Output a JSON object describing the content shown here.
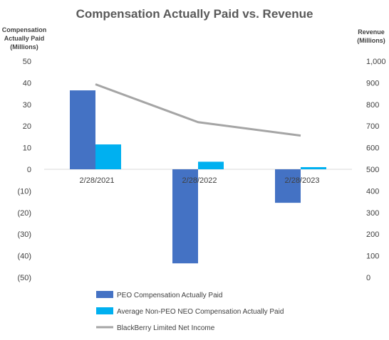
{
  "chart_data": {
    "type": "bar",
    "title": "Compensation Actually Paid vs. Revenue",
    "y_left_label_lines": [
      "Compensation",
      "Actually Paid",
      "(Millions)"
    ],
    "y_right_label_lines": [
      "Revenue",
      "(Millions)"
    ],
    "categories": [
      "2/28/2021",
      "2/28/2022",
      "2/28/2023"
    ],
    "y_left_ticks": [
      "50",
      "40",
      "30",
      "20",
      "10",
      "0",
      "(10)",
      "(20)",
      "(30)",
      "(40)",
      "(50)"
    ],
    "y_right_ticks": [
      "1,000",
      "900",
      "800",
      "700",
      "600",
      "500",
      "400",
      "300",
      "200",
      "100",
      "0"
    ],
    "ylim_left": [
      -50,
      50
    ],
    "ylim_right": [
      0,
      1000
    ],
    "series": [
      {
        "name": "PEO Compensation Actually Paid",
        "type": "bar",
        "axis": "left",
        "color": "#4472C4",
        "values": [
          36.5,
          -43.5,
          -15.5
        ]
      },
      {
        "name": "Average Non-PEO NEO Compensation Actually Paid",
        "type": "bar",
        "axis": "left",
        "color": "#00B0F0",
        "values": [
          11.5,
          3.5,
          1.0
        ]
      },
      {
        "name": "BlackBerry Limited Net Income",
        "type": "line",
        "axis": "right",
        "color": "#A5A5A5",
        "values": [
          893,
          718,
          656
        ]
      }
    ],
    "legend_position": "bottom",
    "grid": false
  }
}
